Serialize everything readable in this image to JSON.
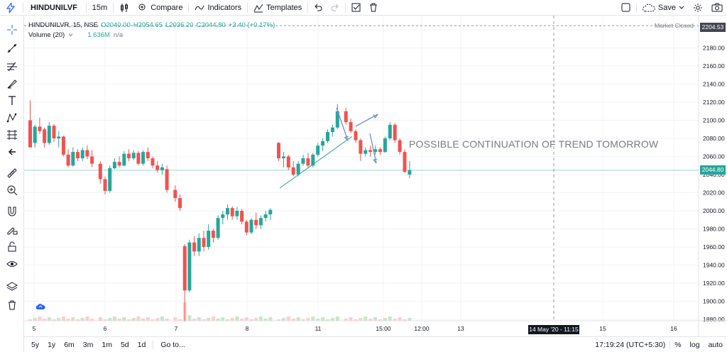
{
  "toolbar": {
    "symbol": "HINDUNILVF",
    "interval": "15m",
    "compare": "Compare",
    "indicators": "Indicators",
    "templates": "Templates",
    "save": "Save"
  },
  "legend": {
    "title": "HINDUNILVR, 15, NSE",
    "open": "O2040.00",
    "high": "H2054.65",
    "low": "L2036.20",
    "close": "C2044.80",
    "change": "+3.40 (+0.17%)",
    "volume_label": "Volume (20)",
    "volume_value": "1.636M",
    "volume_ma": "n/a"
  },
  "annotation_text": "POSSIBLE CONTINUATION OF TREND TOMORROW",
  "market_status": "Market Closed",
  "price_scale": {
    "ticks": [
      "2200.00",
      "2180.00",
      "2160.00",
      "2140.00",
      "2120.00",
      "2100.00",
      "2080.00",
      "2060.00",
      "2040.00",
      "2020.00",
      "2000.00",
      "1980.00",
      "1960.00",
      "1940.00",
      "1920.00",
      "1900.00",
      "1880.00"
    ],
    "last_price": "2044.80",
    "top_price": "2204.53"
  },
  "time_scale": {
    "ticks": [
      "5",
      "6",
      "7",
      "8",
      "11",
      "15:00",
      "12:00",
      "13",
      "15",
      "16"
    ],
    "crosshair_label": "14 May '20 - 11:15"
  },
  "bottom": {
    "ranges": [
      "5y",
      "1y",
      "6m",
      "3m",
      "1m",
      "5d",
      "1d"
    ],
    "goto": "Go to...",
    "clock": "17:19:24 (UTC+5:30)",
    "percent": "%",
    "log": "log",
    "auto": "auto"
  },
  "colors": {
    "up": "#26a69a",
    "down": "#ef5350",
    "up_volume": "#c8e6c9",
    "down_volume": "#ffcdd2",
    "arrow": "#6f8dc6",
    "accent": "#2962ff"
  },
  "chart_data": {
    "type": "candlestick",
    "symbol": "HINDUNILVR",
    "interval": "15",
    "exchange": "NSE",
    "ylim": [
      1875,
      2210
    ],
    "candles": [
      {
        "d": "5",
        "o": 2100,
        "h": 2122,
        "l": 2073,
        "c": 2070
      },
      {
        "d": "5",
        "o": 2075,
        "h": 2095,
        "l": 2070,
        "c": 2093
      },
      {
        "d": "5",
        "o": 2093,
        "h": 2103,
        "l": 2085,
        "c": 2088
      },
      {
        "d": "5",
        "o": 2090,
        "h": 2092,
        "l": 2070,
        "c": 2075
      },
      {
        "d": "5",
        "o": 2075,
        "h": 2098,
        "l": 2073,
        "c": 2094
      },
      {
        "d": "5",
        "o": 2094,
        "h": 2096,
        "l": 2076,
        "c": 2080
      },
      {
        "d": "5",
        "o": 2080,
        "h": 2088,
        "l": 2070,
        "c": 2082
      },
      {
        "d": "5",
        "o": 2082,
        "h": 2083,
        "l": 2060,
        "c": 2062
      },
      {
        "d": "5",
        "o": 2062,
        "h": 2068,
        "l": 2048,
        "c": 2050
      },
      {
        "d": "5",
        "o": 2050,
        "h": 2070,
        "l": 2049,
        "c": 2065
      },
      {
        "d": "5",
        "o": 2065,
        "h": 2068,
        "l": 2055,
        "c": 2058
      },
      {
        "d": "5",
        "o": 2058,
        "h": 2070,
        "l": 2055,
        "c": 2067
      },
      {
        "d": "5",
        "o": 2067,
        "h": 2072,
        "l": 2057,
        "c": 2060
      },
      {
        "d": "5",
        "o": 2060,
        "h": 2067,
        "l": 2048,
        "c": 2052
      },
      {
        "d": "6",
        "o": 2052,
        "h": 2055,
        "l": 2030,
        "c": 2035
      },
      {
        "d": "6",
        "o": 2035,
        "h": 2038,
        "l": 2018,
        "c": 2022
      },
      {
        "d": "6",
        "o": 2022,
        "h": 2050,
        "l": 2020,
        "c": 2047
      },
      {
        "d": "6",
        "o": 2047,
        "h": 2058,
        "l": 2046,
        "c": 2054
      },
      {
        "d": "6",
        "o": 2054,
        "h": 2060,
        "l": 2048,
        "c": 2050
      },
      {
        "d": "6",
        "o": 2050,
        "h": 2066,
        "l": 2049,
        "c": 2063
      },
      {
        "d": "6",
        "o": 2063,
        "h": 2068,
        "l": 2055,
        "c": 2058
      },
      {
        "d": "6",
        "o": 2058,
        "h": 2067,
        "l": 2056,
        "c": 2064
      },
      {
        "d": "6",
        "o": 2064,
        "h": 2066,
        "l": 2050,
        "c": 2052
      },
      {
        "d": "6",
        "o": 2052,
        "h": 2067,
        "l": 2050,
        "c": 2065
      },
      {
        "d": "6",
        "o": 2065,
        "h": 2070,
        "l": 2055,
        "c": 2058
      },
      {
        "d": "6",
        "o": 2058,
        "h": 2060,
        "l": 2047,
        "c": 2050
      },
      {
        "d": "6",
        "o": 2050,
        "h": 2055,
        "l": 2042,
        "c": 2045
      },
      {
        "d": "6",
        "o": 2045,
        "h": 2052,
        "l": 2040,
        "c": 2048
      },
      {
        "d": "6",
        "o": 2046,
        "h": 2050,
        "l": 2020,
        "c": 2023
      },
      {
        "d": "7",
        "o": 2023,
        "h": 2028,
        "l": 2010,
        "c": 2014
      },
      {
        "d": "7",
        "o": 2014,
        "h": 2018,
        "l": 2000,
        "c": 2003
      },
      {
        "d": "7",
        "o": 1961,
        "h": 1963,
        "l": 1878,
        "c": 1912
      },
      {
        "d": "7",
        "o": 1912,
        "h": 1968,
        "l": 1910,
        "c": 1965
      },
      {
        "d": "7",
        "o": 1965,
        "h": 1972,
        "l": 1950,
        "c": 1955
      },
      {
        "d": "7",
        "o": 1955,
        "h": 1975,
        "l": 1950,
        "c": 1970
      },
      {
        "d": "7",
        "o": 1970,
        "h": 1978,
        "l": 1955,
        "c": 1960
      },
      {
        "d": "7",
        "o": 1960,
        "h": 1985,
        "l": 1957,
        "c": 1978
      },
      {
        "d": "7",
        "o": 1978,
        "h": 1980,
        "l": 1965,
        "c": 1970
      },
      {
        "d": "7",
        "o": 1970,
        "h": 1995,
        "l": 1968,
        "c": 1992
      },
      {
        "d": "7",
        "o": 1992,
        "h": 2000,
        "l": 1985,
        "c": 1996
      },
      {
        "d": "7",
        "o": 1996,
        "h": 2007,
        "l": 1990,
        "c": 2003
      },
      {
        "d": "7",
        "o": 2003,
        "h": 2005,
        "l": 1990,
        "c": 1994
      },
      {
        "d": "7",
        "o": 1994,
        "h": 2004,
        "l": 1990,
        "c": 2000
      },
      {
        "d": "7",
        "o": 2000,
        "h": 2002,
        "l": 1985,
        "c": 1988
      },
      {
        "d": "7",
        "o": 1988,
        "h": 1990,
        "l": 1973,
        "c": 1976
      },
      {
        "d": "7",
        "o": 1976,
        "h": 1992,
        "l": 1974,
        "c": 1990
      },
      {
        "d": "7",
        "o": 1990,
        "h": 1998,
        "l": 1980,
        "c": 1984
      },
      {
        "d": "7",
        "o": 1984,
        "h": 1995,
        "l": 1980,
        "c": 1992
      },
      {
        "d": "7",
        "o": 1992,
        "h": 2000,
        "l": 1988,
        "c": 1996
      },
      {
        "d": "7",
        "o": 1996,
        "h": 2003,
        "l": 1990,
        "c": 2001
      },
      {
        "d": "8",
        "o": 2075,
        "h": 2076,
        "l": 2055,
        "c": 2058
      },
      {
        "d": "8",
        "o": 2058,
        "h": 2065,
        "l": 2048,
        "c": 2060
      },
      {
        "d": "8",
        "o": 2060,
        "h": 2062,
        "l": 2045,
        "c": 2048
      },
      {
        "d": "8",
        "o": 2048,
        "h": 2055,
        "l": 2038,
        "c": 2040
      },
      {
        "d": "8",
        "o": 2040,
        "h": 2055,
        "l": 2038,
        "c": 2052
      },
      {
        "d": "8",
        "o": 2052,
        "h": 2062,
        "l": 2050,
        "c": 2058
      },
      {
        "d": "8",
        "o": 2058,
        "h": 2064,
        "l": 2048,
        "c": 2050
      },
      {
        "d": "8",
        "o": 2050,
        "h": 2064,
        "l": 2048,
        "c": 2062
      },
      {
        "d": "8",
        "o": 2062,
        "h": 2075,
        "l": 2060,
        "c": 2072
      },
      {
        "d": "8",
        "o": 2072,
        "h": 2080,
        "l": 2066,
        "c": 2077
      },
      {
        "d": "8",
        "o": 2077,
        "h": 2090,
        "l": 2075,
        "c": 2087
      },
      {
        "d": "8",
        "o": 2087,
        "h": 2095,
        "l": 2082,
        "c": 2092
      },
      {
        "d": "8",
        "o": 2092,
        "h": 2118,
        "l": 2090,
        "c": 2110
      },
      {
        "d": "11",
        "o": 2110,
        "h": 2114,
        "l": 2095,
        "c": 2098
      },
      {
        "d": "11",
        "o": 2098,
        "h": 2102,
        "l": 2086,
        "c": 2088
      },
      {
        "d": "11",
        "o": 2088,
        "h": 2090,
        "l": 2075,
        "c": 2078
      },
      {
        "d": "11",
        "o": 2078,
        "h": 2080,
        "l": 2055,
        "c": 2063
      },
      {
        "d": "11",
        "o": 2063,
        "h": 2070,
        "l": 2060,
        "c": 2067
      },
      {
        "d": "11",
        "o": 2067,
        "h": 2072,
        "l": 2060,
        "c": 2065
      },
      {
        "d": "11",
        "o": 2065,
        "h": 2072,
        "l": 2062,
        "c": 2068
      },
      {
        "d": "11",
        "o": 2068,
        "h": 2070,
        "l": 2062,
        "c": 2065
      },
      {
        "d": "11",
        "o": 2065,
        "h": 2082,
        "l": 2064,
        "c": 2080
      },
      {
        "d": "11",
        "o": 2080,
        "h": 2098,
        "l": 2078,
        "c": 2095
      },
      {
        "d": "11",
        "o": 2095,
        "h": 2097,
        "l": 2075,
        "c": 2078
      },
      {
        "d": "11",
        "o": 2078,
        "h": 2080,
        "l": 2062,
        "c": 2065
      },
      {
        "d": "11",
        "o": 2065,
        "h": 2068,
        "l": 2042,
        "c": 2043
      },
      {
        "d": "11",
        "o": 2040,
        "h": 2055,
        "l": 2036,
        "c": 2045
      }
    ],
    "volume_title": "Volume (20)",
    "trendline": {
      "from": [
        "8",
        2025
      ],
      "to": [
        "11",
        2075
      ]
    },
    "vertical_marker": "14 May '20 - 11:15",
    "horizontal_marker": 2204.53,
    "last_price": 2044.8
  }
}
